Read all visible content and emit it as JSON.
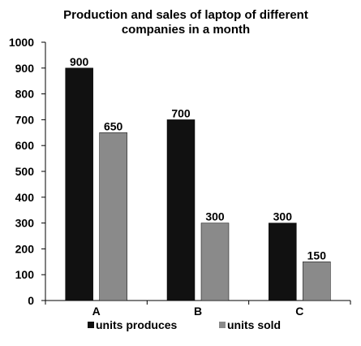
{
  "chart_data": {
    "type": "bar",
    "title_lines": [
      "Production and sales of laptop of different",
      "companies in a month"
    ],
    "categories": [
      "A",
      "B",
      "C"
    ],
    "series": [
      {
        "name": "units produces",
        "color": "#111111",
        "values": [
          900,
          700,
          300
        ],
        "labels": [
          "900",
          "700",
          "300"
        ]
      },
      {
        "name": "units sold",
        "color": "#8a8a8a",
        "values": [
          650,
          300,
          150
        ],
        "labels": [
          "650",
          "300",
          "150"
        ]
      }
    ],
    "ylim": [
      0,
      1000
    ],
    "yticks": [
      0,
      100,
      200,
      300,
      400,
      500,
      600,
      700,
      800,
      900,
      1000
    ],
    "xlabel": "",
    "ylabel": "",
    "grid": false,
    "legend_position": "bottom"
  }
}
